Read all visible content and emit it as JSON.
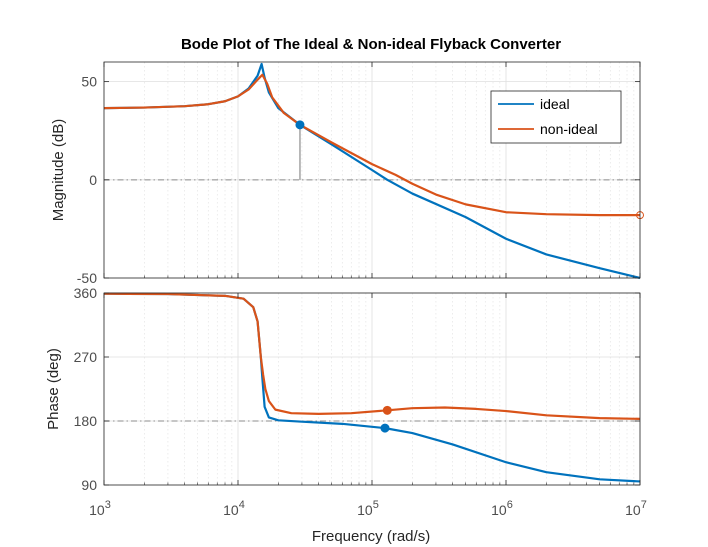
{
  "chart_data": {
    "type": "line",
    "title": "Bode Plot of The Ideal & Non-ideal Flyback Converter",
    "xlabel": "Frequency  (rad/s)",
    "x_scale": "log",
    "xlim": [
      1000,
      10000000
    ],
    "x_tick_labels": [
      {
        "base": "10",
        "exp": "3"
      },
      {
        "base": "10",
        "exp": "4"
      },
      {
        "base": "10",
        "exp": "5"
      },
      {
        "base": "10",
        "exp": "6"
      },
      {
        "base": "10",
        "exp": "7"
      }
    ],
    "legend": {
      "placement": "top-right",
      "entries": [
        "ideal",
        "non-ideal"
      ]
    },
    "colors": {
      "ideal": "#0072bd",
      "non-ideal": "#d95319",
      "axes": "#262626",
      "grid": "#dfdfdf",
      "crosshair": "#8c8c8c"
    },
    "grid": true,
    "panels": [
      {
        "id": "magnitude",
        "ylabel": "Magnitude (dB)",
        "ylim": [
          -50,
          60
        ],
        "y_ticks": [
          -50,
          0,
          50
        ],
        "y_tick_labels": [
          "-50",
          "0",
          "50"
        ],
        "series": [
          {
            "name": "ideal",
            "x": [
              1000,
              2000,
              4000,
              6000,
              8000,
              10000,
              12000,
              14000,
              15000,
              15800,
              17000,
              20000,
              29000,
              50000,
              100000,
              130000,
              200000,
              500000,
              1000000,
              2000000,
              5000000,
              10000000
            ],
            "y": [
              36.5,
              36.8,
              37.5,
              38.5,
              40,
              42.5,
              46.5,
              53,
              59,
              52,
              44.5,
              36.5,
              28,
              18,
              5,
              0,
              -7,
              -19,
              -30,
              -38,
              -45,
              -50
            ]
          },
          {
            "name": "non-ideal",
            "x": [
              1000,
              2000,
              4000,
              6000,
              8000,
              10000,
              12000,
              14000,
              15200,
              16500,
              18000,
              22000,
              29000,
              50000,
              100000,
              150000,
              200000,
              300000,
              500000,
              1000000,
              2000000,
              5000000,
              10000000
            ],
            "y": [
              36.5,
              36.8,
              37.5,
              38.5,
              40,
              42.5,
              46,
              51,
              53.5,
              49,
              42,
              34,
              28,
              19,
              8,
              2.5,
              -2,
              -7.5,
              -12.5,
              -16.5,
              -17.5,
              -18,
              -18
            ]
          }
        ],
        "markers": [
          {
            "series": "ideal",
            "x": 29000,
            "y": 28,
            "style": "filled",
            "stem": true
          },
          {
            "series": "non-ideal",
            "x": 10000000,
            "y": -18,
            "style": "open"
          }
        ],
        "reference_line": 0
      },
      {
        "id": "phase",
        "ylabel": "Phase (deg)",
        "ylim": [
          90,
          360
        ],
        "y_ticks": [
          90,
          180,
          270,
          360
        ],
        "y_tick_labels": [
          "90",
          "180",
          "270",
          "360"
        ],
        "series": [
          {
            "name": "ideal",
            "x": [
              1000,
              3000,
              8000,
              11000,
              13000,
              14000,
              14800,
              15200,
              15800,
              17000,
              20000,
              30000,
              60000,
              125000,
              200000,
              400000,
              1000000,
              2000000,
              5000000,
              10000000
            ],
            "y": [
              359,
              358.5,
              356,
              352,
              340,
              320,
              270,
              240,
              200,
              185,
              181,
              179,
              176,
              170,
              163,
              147,
              122,
              108,
              98,
              95
            ]
          },
          {
            "name": "non-ideal",
            "x": [
              1000,
              3000,
              8000,
              11000,
              13000,
              14000,
              14800,
              15400,
              16000,
              17000,
              19000,
              25000,
              40000,
              70000,
              130000,
              200000,
              350000,
              600000,
              1000000,
              2000000,
              5000000,
              10000000
            ],
            "y": [
              359,
              358.5,
              356,
              352,
              340,
              320,
              270,
              245,
              225,
              208,
              196,
              191,
              190,
              191,
              195,
              198,
              199,
              197,
              194,
              188,
              184,
              183
            ]
          }
        ],
        "markers": [
          {
            "series": "ideal",
            "x": 125000,
            "y": 170,
            "style": "filled"
          },
          {
            "series": "non-ideal",
            "x": 130000,
            "y": 195,
            "style": "filled"
          }
        ],
        "reference_line": 180
      }
    ]
  }
}
